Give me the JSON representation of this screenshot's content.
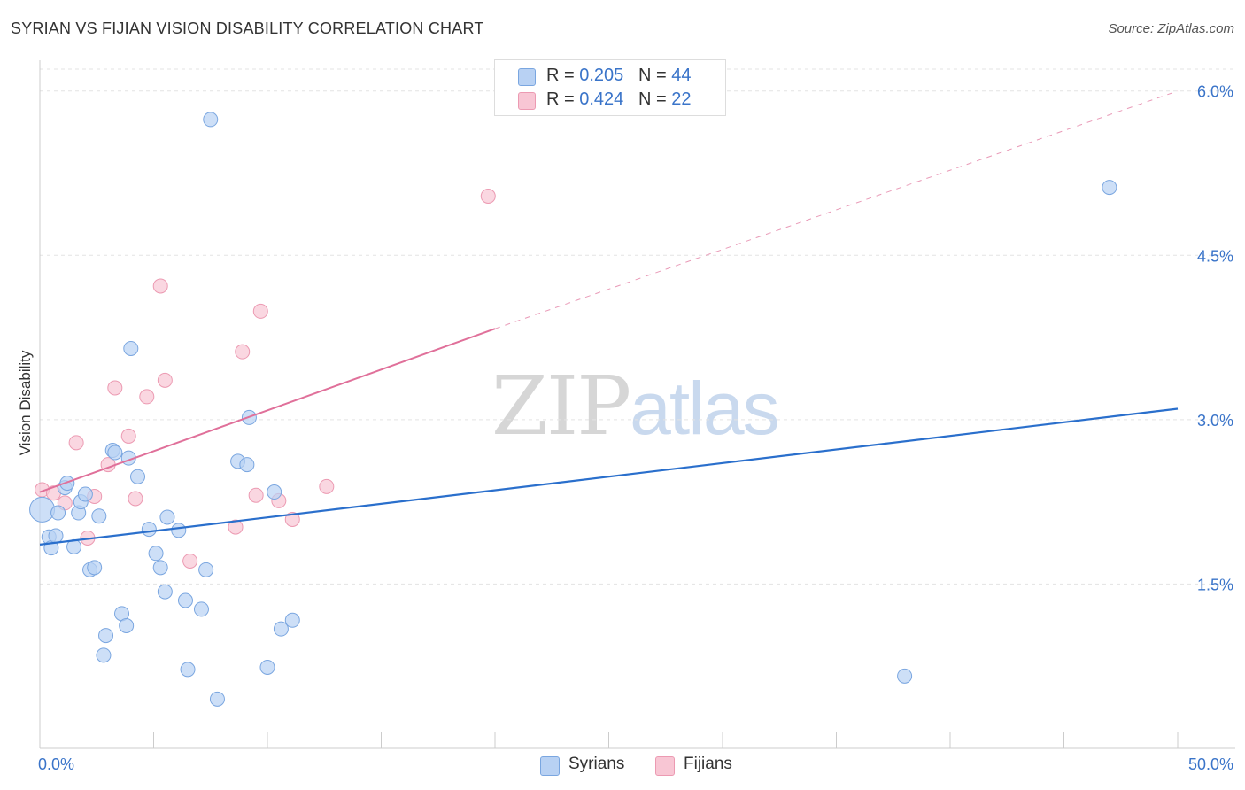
{
  "header": {
    "title": "SYRIAN VS FIJIAN VISION DISABILITY CORRELATION CHART",
    "source": "Source: ZipAtlas.com"
  },
  "legend": {
    "rows": [
      {
        "r_label": "R = ",
        "r_value": "0.205",
        "n_label": "N = ",
        "n_value": "44"
      },
      {
        "r_label": "R = ",
        "r_value": "0.424",
        "n_label": "N = ",
        "n_value": "22"
      }
    ]
  },
  "bottom_legend": {
    "syrians": "Syrians",
    "fijians": "Fijians"
  },
  "watermark": {
    "zip": "ZIP",
    "atlas": "atlas"
  },
  "colors": {
    "syrians_fill": "#b8d1f3",
    "syrians_stroke": "#7aa6e0",
    "syrians_line": "#2a6fcc",
    "fijians_fill": "#f8c6d4",
    "fijians_stroke": "#ec9ab2",
    "fijians_line": "#e0709a",
    "axis_label_color": "#3a74c9",
    "grid": "#e3e3e3"
  },
  "chart_data": {
    "type": "scatter",
    "title": "SYRIAN VS FIJIAN VISION DISABILITY CORRELATION CHART",
    "xlabel": "",
    "ylabel": "Vision Disability",
    "xlim": [
      0,
      50
    ],
    "ylim": [
      0,
      6.2
    ],
    "x_tick_labels": [
      "0.0%",
      "50.0%"
    ],
    "y_ticks": [
      1.5,
      3.0,
      4.5,
      6.0
    ],
    "y_tick_labels": [
      "1.5%",
      "3.0%",
      "4.5%",
      "6.0%"
    ],
    "grid": true,
    "legend_position": "top-center",
    "series": [
      {
        "name": "Syrians",
        "r": 0.205,
        "n": 44,
        "trend": {
          "x": [
            0,
            50
          ],
          "y": [
            1.86,
            3.1
          ]
        },
        "points": [
          [
            0.1,
            2.18
          ],
          [
            0.4,
            1.93
          ],
          [
            0.5,
            1.83
          ],
          [
            0.7,
            1.94
          ],
          [
            0.8,
            2.15
          ],
          [
            1.1,
            2.38
          ],
          [
            1.2,
            2.42
          ],
          [
            1.5,
            1.84
          ],
          [
            1.7,
            2.15
          ],
          [
            1.8,
            2.25
          ],
          [
            2.0,
            2.32
          ],
          [
            2.2,
            1.63
          ],
          [
            2.4,
            1.65
          ],
          [
            2.6,
            2.12
          ],
          [
            2.8,
            0.85
          ],
          [
            2.9,
            1.03
          ],
          [
            3.2,
            2.72
          ],
          [
            3.3,
            2.7
          ],
          [
            3.6,
            1.23
          ],
          [
            3.8,
            1.12
          ],
          [
            3.9,
            2.65
          ],
          [
            4.0,
            3.65
          ],
          [
            4.3,
            2.48
          ],
          [
            4.8,
            2.0
          ],
          [
            5.1,
            1.78
          ],
          [
            5.3,
            1.65
          ],
          [
            5.5,
            1.43
          ],
          [
            5.6,
            2.11
          ],
          [
            6.1,
            1.99
          ],
          [
            6.4,
            1.35
          ],
          [
            6.5,
            0.72
          ],
          [
            7.1,
            1.27
          ],
          [
            7.3,
            1.63
          ],
          [
            7.5,
            5.74
          ],
          [
            7.8,
            0.45
          ],
          [
            8.7,
            2.62
          ],
          [
            9.1,
            2.59
          ],
          [
            9.2,
            3.02
          ],
          [
            10.0,
            0.74
          ],
          [
            10.3,
            2.34
          ],
          [
            10.6,
            1.09
          ],
          [
            11.1,
            1.17
          ],
          [
            38.0,
            0.66
          ],
          [
            47.0,
            5.12
          ]
        ]
      },
      {
        "name": "Fijians",
        "r": 0.424,
        "n": 22,
        "trend": {
          "x": [
            0,
            20
          ],
          "y": [
            2.34,
            3.83
          ],
          "dashed_to": [
            50,
            6.0
          ]
        },
        "points": [
          [
            0.1,
            2.36
          ],
          [
            0.6,
            2.33
          ],
          [
            1.1,
            2.24
          ],
          [
            1.6,
            2.79
          ],
          [
            2.1,
            1.92
          ],
          [
            2.4,
            2.3
          ],
          [
            3.0,
            2.59
          ],
          [
            3.3,
            3.29
          ],
          [
            3.9,
            2.85
          ],
          [
            4.2,
            2.28
          ],
          [
            4.7,
            3.21
          ],
          [
            5.3,
            4.22
          ],
          [
            5.5,
            3.36
          ],
          [
            6.6,
            1.71
          ],
          [
            8.6,
            2.02
          ],
          [
            8.9,
            3.62
          ],
          [
            9.5,
            2.31
          ],
          [
            9.7,
            3.99
          ],
          [
            10.5,
            2.26
          ],
          [
            11.1,
            2.09
          ],
          [
            12.6,
            2.39
          ],
          [
            19.7,
            5.04
          ]
        ]
      }
    ]
  }
}
